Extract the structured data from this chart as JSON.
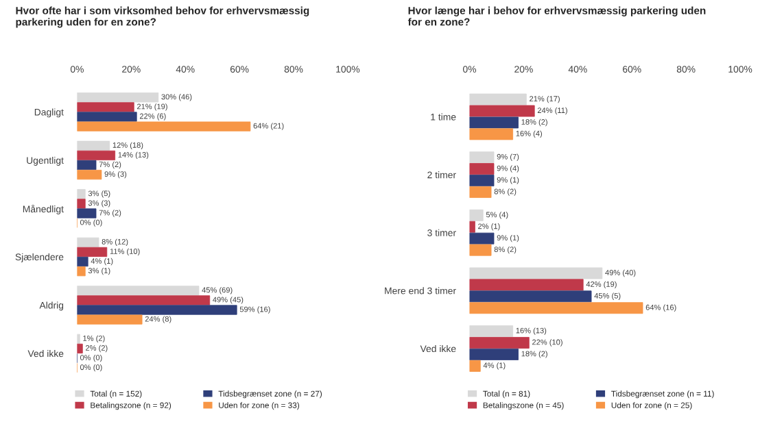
{
  "chart_data": [
    {
      "type": "bar",
      "orientation": "horizontal",
      "title": "Hvor ofte har i som virksomhed behov for erhvervsmæssig parkering uden for en zone?",
      "categories": [
        "Dagligt",
        "Ugentligt",
        "Månedligt",
        "Sjælendere",
        "Aldrig",
        "Ved ikke"
      ],
      "xlim": [
        0,
        100
      ],
      "xticks": [
        {
          "value": 0,
          "label": "0%"
        },
        {
          "value": 20,
          "label": "20%"
        },
        {
          "value": 40,
          "label": "40%"
        },
        {
          "value": 60,
          "label": "60%"
        },
        {
          "value": 80,
          "label": "80%"
        },
        {
          "value": 100,
          "label": "100%"
        }
      ],
      "legend": "bottom",
      "grid": false,
      "series": [
        {
          "name": "Total (n = 152)",
          "color": "#d9d9d9",
          "values": [
            30,
            12,
            3,
            8,
            45,
            1
          ],
          "value_labels": [
            "30% (46)",
            "12% (18)",
            "3% (5)",
            "8% (12)",
            "45% (69)",
            "1% (2)"
          ]
        },
        {
          "name": "Betalingszone (n = 92)",
          "color": "#c0394a",
          "values": [
            21,
            14,
            3,
            11,
            49,
            2
          ],
          "value_labels": [
            "21% (19)",
            "14% (13)",
            "3% (3)",
            "11% (10)",
            "49% (45)",
            "2% (2)"
          ]
        },
        {
          "name": "Tidsbegrænset zone (n = 27)",
          "color": "#2f3f7a",
          "values": [
            22,
            7,
            7,
            4,
            59,
            0
          ],
          "value_labels": [
            "22% (6)",
            "7% (2)",
            "7% (2)",
            "4% (1)",
            "59% (16)",
            "0% (0)"
          ]
        },
        {
          "name": "Uden for zone (n = 33)",
          "color": "#f79646",
          "values": [
            64,
            9,
            0,
            3,
            24,
            0
          ],
          "value_labels": [
            "64% (21)",
            "9% (3)",
            "0% (0)",
            "3% (1)",
            "24% (8)",
            "0% (0)"
          ]
        }
      ]
    },
    {
      "type": "bar",
      "orientation": "horizontal",
      "title": "Hvor længe har i behov for erhvervsmæssig parkering uden for en zone?",
      "categories": [
        "1 time",
        "2 timer",
        "3 timer",
        "Mere end 3 timer",
        "Ved ikke"
      ],
      "xlim": [
        0,
        100
      ],
      "xticks": [
        {
          "value": 0,
          "label": "0%"
        },
        {
          "value": 20,
          "label": "20%"
        },
        {
          "value": 40,
          "label": "40%"
        },
        {
          "value": 60,
          "label": "60%"
        },
        {
          "value": 80,
          "label": "80%"
        },
        {
          "value": 100,
          "label": "100%"
        }
      ],
      "legend": "bottom",
      "grid": false,
      "series": [
        {
          "name": "Total (n = 81)",
          "color": "#d9d9d9",
          "values": [
            21,
            9,
            5,
            49,
            16
          ],
          "value_labels": [
            "21% (17)",
            "9% (7)",
            "5% (4)",
            "49% (40)",
            "16% (13)"
          ]
        },
        {
          "name": "Betalingszone (n = 45)",
          "color": "#c0394a",
          "values": [
            24,
            9,
            2,
            42,
            22
          ],
          "value_labels": [
            "24% (11)",
            "9% (4)",
            "2% (1)",
            "42% (19)",
            "22% (10)"
          ]
        },
        {
          "name": "Tidsbegrænset zone (n = 11)",
          "color": "#2f3f7a",
          "values": [
            18,
            9,
            9,
            45,
            18
          ],
          "value_labels": [
            "18% (2)",
            "9% (1)",
            "9% (1)",
            "45% (5)",
            "18% (2)"
          ]
        },
        {
          "name": "Uden for zone (n = 25)",
          "color": "#f79646",
          "values": [
            16,
            8,
            8,
            64,
            4
          ],
          "value_labels": [
            "16% (4)",
            "8% (2)",
            "8% (2)",
            "64% (16)",
            "4% (1)"
          ]
        }
      ]
    }
  ]
}
